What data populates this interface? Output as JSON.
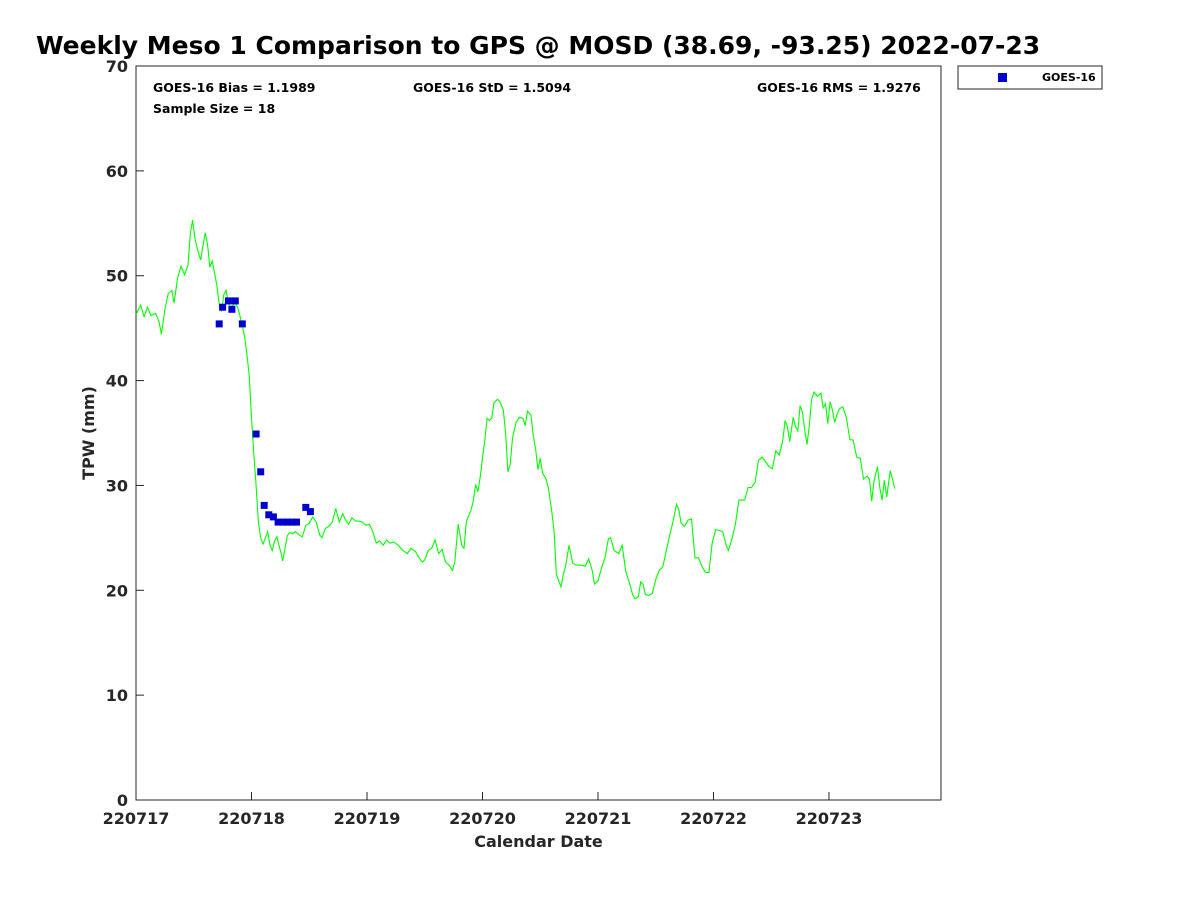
{
  "chart_data": {
    "type": "line",
    "title": "Weekly Meso 1 Comparison to GPS @ MOSD (38.69, -93.25) 2022-07-23",
    "xlabel": "Calendar Date",
    "ylabel": "TPW (mm)",
    "xlim": [
      0,
      6.97
    ],
    "ylim": [
      0,
      70
    ],
    "x_ticks": [
      {
        "value": 0,
        "label": "220717"
      },
      {
        "value": 1,
        "label": "220718"
      },
      {
        "value": 2,
        "label": "220719"
      },
      {
        "value": 3,
        "label": "220720"
      },
      {
        "value": 4,
        "label": "220721"
      },
      {
        "value": 5,
        "label": "220722"
      },
      {
        "value": 6,
        "label": "220723"
      }
    ],
    "y_ticks": [
      {
        "value": 0,
        "label": "0"
      },
      {
        "value": 10,
        "label": "10"
      },
      {
        "value": 20,
        "label": "20"
      },
      {
        "value": 30,
        "label": "30"
      },
      {
        "value": 40,
        "label": "40"
      },
      {
        "value": 50,
        "label": "50"
      },
      {
        "value": 60,
        "label": "60"
      },
      {
        "value": 70,
        "label": "70"
      }
    ],
    "grid": false,
    "legend_position": "top-right outside",
    "stats": {
      "bias": "GOES-16 Bias = 1.1989",
      "std": "GOES-16 StD = 1.5094",
      "rms": "GOES-16 RMS = 1.9276",
      "sample": "Sample Size = 18"
    },
    "series": [
      {
        "name": "",
        "kind": "line",
        "color": "#00ff00",
        "points": [
          [
            0.0,
            46.3
          ],
          [
            0.04,
            47.2
          ],
          [
            0.07,
            46.1
          ],
          [
            0.1,
            47.0
          ],
          [
            0.13,
            46.2
          ],
          [
            0.17,
            46.4
          ],
          [
            0.2,
            45.6
          ],
          [
            0.22,
            44.4
          ],
          [
            0.25,
            46.8
          ],
          [
            0.28,
            48.3
          ],
          [
            0.31,
            48.6
          ],
          [
            0.33,
            47.4
          ],
          [
            0.36,
            49.8
          ],
          [
            0.39,
            50.9
          ],
          [
            0.42,
            50.1
          ],
          [
            0.45,
            51.0
          ],
          [
            0.47,
            54.0
          ],
          [
            0.49,
            55.3
          ],
          [
            0.51,
            53.6
          ],
          [
            0.53,
            52.6
          ],
          [
            0.56,
            51.5
          ],
          [
            0.58,
            52.9
          ],
          [
            0.6,
            54.1
          ],
          [
            0.62,
            52.9
          ],
          [
            0.64,
            50.8
          ],
          [
            0.66,
            51.4
          ],
          [
            0.68,
            50.3
          ],
          [
            0.7,
            49.1
          ],
          [
            0.72,
            47.3
          ],
          [
            0.74,
            46.6
          ],
          [
            0.76,
            48.2
          ],
          [
            0.78,
            48.6
          ],
          [
            0.8,
            47.3
          ],
          [
            0.82,
            47.0
          ],
          [
            0.84,
            47.2
          ],
          [
            0.86,
            47.4
          ],
          [
            0.88,
            47.0
          ],
          [
            0.9,
            46.2
          ],
          [
            0.92,
            45.2
          ],
          [
            0.94,
            44.2
          ],
          [
            0.96,
            42.5
          ],
          [
            0.98,
            40.5
          ],
          [
            1.0,
            36.5
          ],
          [
            1.02,
            33.0
          ],
          [
            1.04,
            30.0
          ],
          [
            1.06,
            26.5
          ],
          [
            1.08,
            25.0
          ],
          [
            1.1,
            24.4
          ],
          [
            1.12,
            25.0
          ],
          [
            1.14,
            25.6
          ],
          [
            1.16,
            24.3
          ],
          [
            1.18,
            23.8
          ],
          [
            1.2,
            24.7
          ],
          [
            1.22,
            25.1
          ],
          [
            1.24,
            24.2
          ],
          [
            1.26,
            23.4
          ],
          [
            1.27,
            22.8
          ],
          [
            1.29,
            24.0
          ],
          [
            1.31,
            25.2
          ],
          [
            1.33,
            25.5
          ],
          [
            1.36,
            25.4
          ],
          [
            1.38,
            25.6
          ],
          [
            1.41,
            25.3
          ],
          [
            1.44,
            25.1
          ],
          [
            1.47,
            26.2
          ],
          [
            1.5,
            26.4
          ],
          [
            1.53,
            27.0
          ],
          [
            1.56,
            26.5
          ],
          [
            1.59,
            25.3
          ],
          [
            1.61,
            25.0
          ],
          [
            1.64,
            25.9
          ],
          [
            1.67,
            26.1
          ],
          [
            1.7,
            26.5
          ],
          [
            1.73,
            27.8
          ],
          [
            1.76,
            26.5
          ],
          [
            1.79,
            27.3
          ],
          [
            1.81,
            26.8
          ],
          [
            1.84,
            26.3
          ],
          [
            1.87,
            26.9
          ],
          [
            1.9,
            26.6
          ],
          [
            1.93,
            26.6
          ],
          [
            1.96,
            26.5
          ],
          [
            1.99,
            26.2
          ],
          [
            2.02,
            26.3
          ],
          [
            2.05,
            25.6
          ],
          [
            2.08,
            24.5
          ],
          [
            2.11,
            24.7
          ],
          [
            2.14,
            24.3
          ],
          [
            2.17,
            24.8
          ],
          [
            2.2,
            24.5
          ],
          [
            2.23,
            24.6
          ],
          [
            2.27,
            24.3
          ],
          [
            2.31,
            23.8
          ],
          [
            2.35,
            23.5
          ],
          [
            2.38,
            24.0
          ],
          [
            2.42,
            23.7
          ],
          [
            2.45,
            23.1
          ],
          [
            2.48,
            22.7
          ],
          [
            2.5,
            22.9
          ],
          [
            2.53,
            23.8
          ],
          [
            2.56,
            24.0
          ],
          [
            2.59,
            24.8
          ],
          [
            2.62,
            23.5
          ],
          [
            2.65,
            23.9
          ],
          [
            2.68,
            22.7
          ],
          [
            2.71,
            22.4
          ],
          [
            2.74,
            21.9
          ],
          [
            2.76,
            22.7
          ],
          [
            2.79,
            26.3
          ],
          [
            2.82,
            24.3
          ],
          [
            2.84,
            24.0
          ],
          [
            2.86,
            26.5
          ],
          [
            2.88,
            27.1
          ],
          [
            2.9,
            27.6
          ],
          [
            2.92,
            28.5
          ],
          [
            2.94,
            30.1
          ],
          [
            2.96,
            29.4
          ],
          [
            2.98,
            30.8
          ],
          [
            3.0,
            32.6
          ],
          [
            3.02,
            34.3
          ],
          [
            3.04,
            36.4
          ],
          [
            3.06,
            36.2
          ],
          [
            3.08,
            36.4
          ],
          [
            3.1,
            37.9
          ],
          [
            3.13,
            38.2
          ],
          [
            3.15,
            38.0
          ],
          [
            3.18,
            37.2
          ],
          [
            3.2,
            35.0
          ],
          [
            3.22,
            31.3
          ],
          [
            3.24,
            32.0
          ],
          [
            3.26,
            34.5
          ],
          [
            3.29,
            36.0
          ],
          [
            3.32,
            36.5
          ],
          [
            3.35,
            36.4
          ],
          [
            3.37,
            35.7
          ],
          [
            3.39,
            37.1
          ],
          [
            3.42,
            36.7
          ],
          [
            3.44,
            34.7
          ],
          [
            3.46,
            33.5
          ],
          [
            3.48,
            31.5
          ],
          [
            3.5,
            32.6
          ],
          [
            3.52,
            31.2
          ],
          [
            3.55,
            30.6
          ],
          [
            3.57,
            29.8
          ],
          [
            3.6,
            27.5
          ],
          [
            3.62,
            25.6
          ],
          [
            3.64,
            21.5
          ],
          [
            3.66,
            20.9
          ],
          [
            3.68,
            20.3
          ],
          [
            3.7,
            21.5
          ],
          [
            3.72,
            22.3
          ],
          [
            3.75,
            24.3
          ],
          [
            3.78,
            22.6
          ],
          [
            3.81,
            22.4
          ],
          [
            3.85,
            22.4
          ],
          [
            3.89,
            22.3
          ],
          [
            3.92,
            23.0
          ],
          [
            3.95,
            21.9
          ],
          [
            3.97,
            20.6
          ],
          [
            4.0,
            20.9
          ],
          [
            4.03,
            22.1
          ],
          [
            4.06,
            23.1
          ],
          [
            4.09,
            24.9
          ],
          [
            4.11,
            25.0
          ],
          [
            4.14,
            23.8
          ],
          [
            4.18,
            23.5
          ],
          [
            4.21,
            24.3
          ],
          [
            4.24,
            21.8
          ],
          [
            4.27,
            20.8
          ],
          [
            4.3,
            19.6
          ],
          [
            4.32,
            19.2
          ],
          [
            4.35,
            19.4
          ],
          [
            4.37,
            20.8
          ],
          [
            4.39,
            20.6
          ],
          [
            4.41,
            19.6
          ],
          [
            4.44,
            19.5
          ],
          [
            4.47,
            19.7
          ],
          [
            4.5,
            21.0
          ],
          [
            4.53,
            21.9
          ],
          [
            4.56,
            22.2
          ],
          [
            4.59,
            23.7
          ],
          [
            4.62,
            25.2
          ],
          [
            4.65,
            26.6
          ],
          [
            4.68,
            28.2
          ],
          [
            4.7,
            27.7
          ],
          [
            4.72,
            26.4
          ],
          [
            4.75,
            26.1
          ],
          [
            4.78,
            26.7
          ],
          [
            4.81,
            26.8
          ],
          [
            4.84,
            23.1
          ],
          [
            4.87,
            23.1
          ],
          [
            4.9,
            22.3
          ],
          [
            4.93,
            21.7
          ],
          [
            4.96,
            21.7
          ],
          [
            4.99,
            24.6
          ],
          [
            5.02,
            25.8
          ],
          [
            5.05,
            25.7
          ],
          [
            5.08,
            25.6
          ],
          [
            5.11,
            24.3
          ],
          [
            5.13,
            23.8
          ],
          [
            5.16,
            24.9
          ],
          [
            5.19,
            26.3
          ],
          [
            5.22,
            28.6
          ],
          [
            5.25,
            28.6
          ],
          [
            5.27,
            28.6
          ],
          [
            5.3,
            29.8
          ],
          [
            5.33,
            29.8
          ],
          [
            5.36,
            30.3
          ],
          [
            5.39,
            32.4
          ],
          [
            5.42,
            32.7
          ],
          [
            5.45,
            32.3
          ],
          [
            5.48,
            31.8
          ],
          [
            5.51,
            31.6
          ],
          [
            5.54,
            33.3
          ],
          [
            5.57,
            32.9
          ],
          [
            5.6,
            34.3
          ],
          [
            5.62,
            36.2
          ],
          [
            5.64,
            35.6
          ],
          [
            5.66,
            34.2
          ],
          [
            5.69,
            36.5
          ],
          [
            5.71,
            35.6
          ],
          [
            5.73,
            35.2
          ],
          [
            5.75,
            37.6
          ],
          [
            5.77,
            37.0
          ],
          [
            5.79,
            35.3
          ],
          [
            5.81,
            33.9
          ],
          [
            5.83,
            35.7
          ],
          [
            5.85,
            38.2
          ],
          [
            5.87,
            38.9
          ],
          [
            5.9,
            38.5
          ],
          [
            5.93,
            38.8
          ],
          [
            5.95,
            37.4
          ],
          [
            5.97,
            37.8
          ],
          [
            5.99,
            35.9
          ],
          [
            6.01,
            38.0
          ],
          [
            6.03,
            37.2
          ],
          [
            6.05,
            36.0
          ],
          [
            6.07,
            36.8
          ],
          [
            6.09,
            37.3
          ],
          [
            6.12,
            37.5
          ],
          [
            6.15,
            36.5
          ],
          [
            6.18,
            34.4
          ],
          [
            6.21,
            34.3
          ],
          [
            6.24,
            32.7
          ],
          [
            6.27,
            32.6
          ],
          [
            6.3,
            30.6
          ],
          [
            6.33,
            30.9
          ],
          [
            6.35,
            30.6
          ],
          [
            6.37,
            28.5
          ],
          [
            6.39,
            30.4
          ],
          [
            6.42,
            31.8
          ],
          [
            6.44,
            29.8
          ],
          [
            6.46,
            28.6
          ],
          [
            6.48,
            30.5
          ],
          [
            6.5,
            28.9
          ],
          [
            6.53,
            31.4
          ],
          [
            6.55,
            30.6
          ],
          [
            6.57,
            29.7
          ]
        ]
      },
      {
        "name": "GOES-16",
        "kind": "scatter",
        "marker": "square",
        "color": "#0000cc",
        "points": [
          [
            0.72,
            45.4
          ],
          [
            0.75,
            47.0
          ],
          [
            0.8,
            47.6
          ],
          [
            0.83,
            46.8
          ],
          [
            0.86,
            47.6
          ],
          [
            0.92,
            45.4
          ],
          [
            1.04,
            34.9
          ],
          [
            1.08,
            31.3
          ],
          [
            1.11,
            28.1
          ],
          [
            1.15,
            27.2
          ],
          [
            1.19,
            27.0
          ],
          [
            1.23,
            26.5
          ],
          [
            1.27,
            26.5
          ],
          [
            1.31,
            26.5
          ],
          [
            1.35,
            26.5
          ],
          [
            1.39,
            26.5
          ],
          [
            1.47,
            27.9
          ],
          [
            1.51,
            27.5
          ]
        ]
      }
    ]
  }
}
